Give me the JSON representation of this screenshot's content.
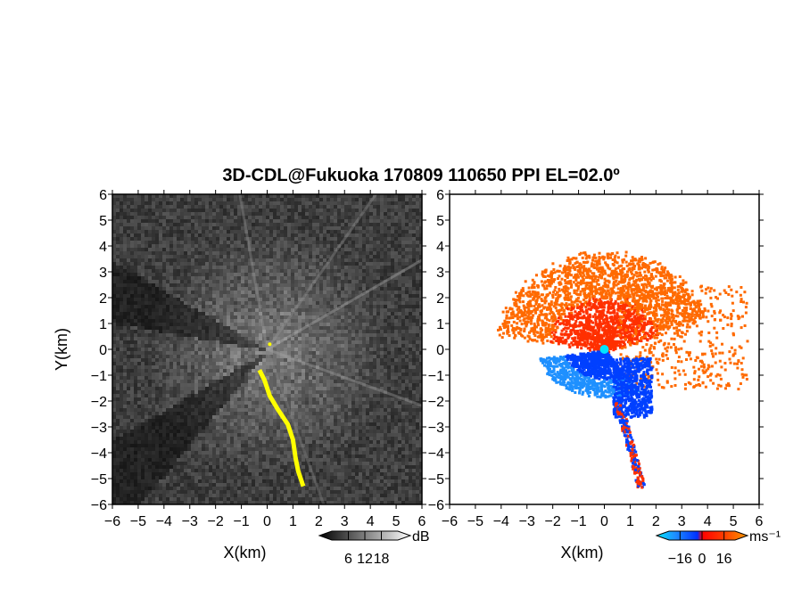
{
  "title": "3D-CDL@Fukuoka 170809 110650 PPI EL=02.0º",
  "chart_data": [
    {
      "type": "heatmap",
      "panel": "reflectivity",
      "xlabel": "X(km)",
      "ylabel": "Y(km)",
      "xlim": [
        -6,
        6
      ],
      "ylim": [
        -6,
        6
      ],
      "xticks": [
        "−6",
        "−5",
        "−4",
        "−3",
        "−2",
        "−1",
        "0",
        "1",
        "2",
        "3",
        "4",
        "5",
        "6"
      ],
      "yticks": [
        "6",
        "5",
        "4",
        "3",
        "2",
        "1",
        "0",
        "−1",
        "−2",
        "−3",
        "−4",
        "−5",
        "−6"
      ],
      "colorbar": {
        "unit": "dB",
        "ticks": [
          "6",
          "12",
          "18"
        ],
        "range": [
          0,
          24
        ]
      },
      "colors": {
        "background": "#3a3a3a",
        "highlight": "#ffff00"
      },
      "highlight_path": [
        [
          -0.3,
          -0.8
        ],
        [
          -0.1,
          -1.2
        ],
        [
          0.1,
          -1.8
        ],
        [
          0.4,
          -2.3
        ],
        [
          0.8,
          -2.9
        ],
        [
          1.0,
          -3.5
        ],
        [
          1.1,
          -4.2
        ],
        [
          1.2,
          -4.7
        ],
        [
          1.4,
          -5.3
        ]
      ]
    },
    {
      "type": "heatmap",
      "panel": "radial_velocity",
      "xlabel": "X(km)",
      "ylabel": "",
      "xlim": [
        -6,
        6
      ],
      "ylim": [
        -6,
        6
      ],
      "xticks": [
        "−6",
        "−5",
        "−4",
        "−3",
        "−2",
        "−1",
        "0",
        "1",
        "2",
        "3",
        "4",
        "5",
        "6"
      ],
      "yticks": [
        "6",
        "5",
        "4",
        "3",
        "2",
        "1",
        "0",
        "−1",
        "−2",
        "−3",
        "−4",
        "−5",
        "−6"
      ],
      "colorbar": {
        "unit": "ms⁻¹",
        "ticks": [
          "−16",
          "0",
          "16"
        ],
        "range": [
          -24,
          24
        ]
      },
      "colors": {
        "positive": "#ff3000",
        "far_positive": "#ff6a00",
        "negative": "#0040ff",
        "far_negative": "#1e90ff",
        "site": "#00e5ff"
      },
      "site": [
        0,
        0
      ]
    }
  ]
}
